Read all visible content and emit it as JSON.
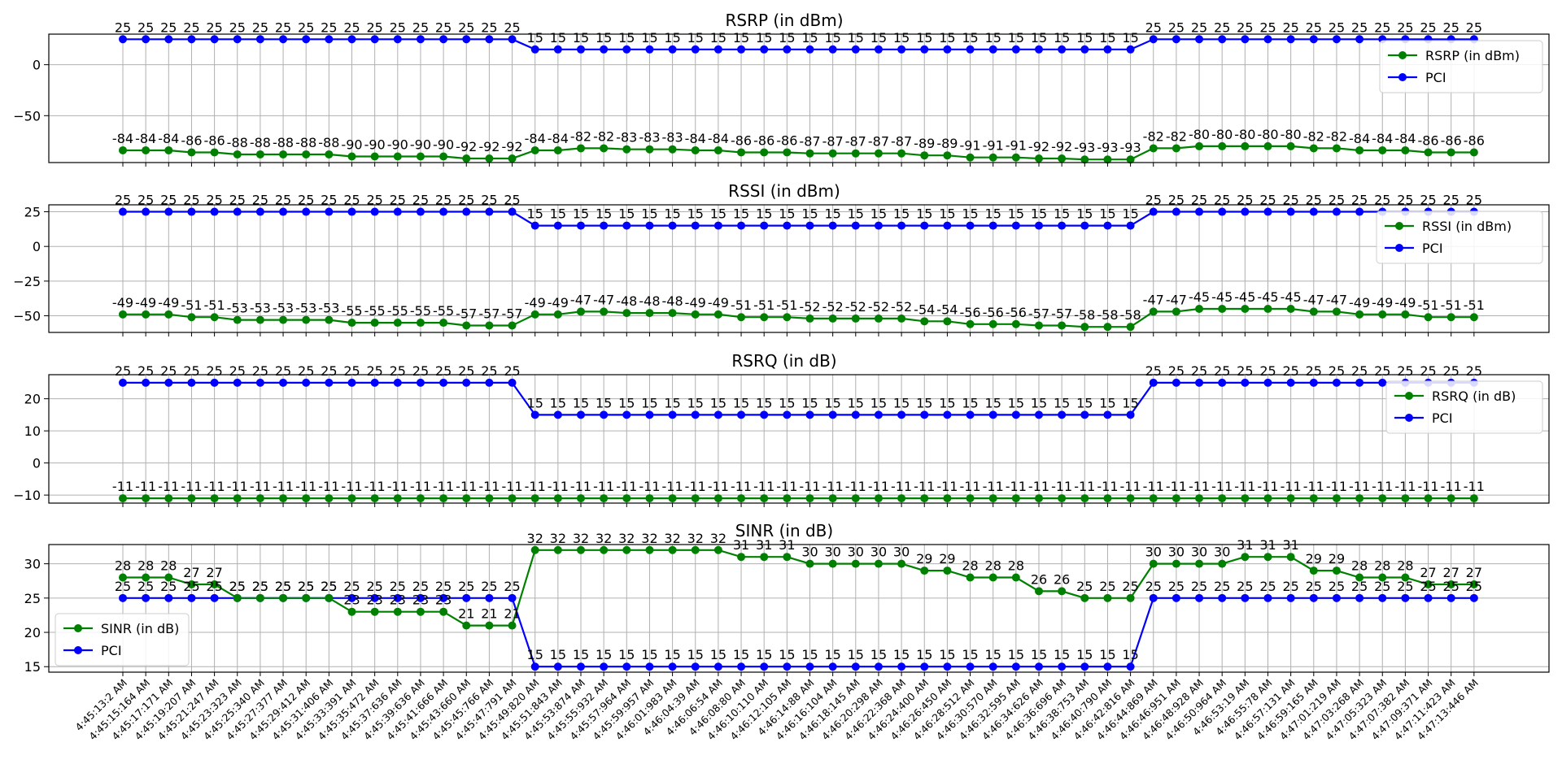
{
  "colors": {
    "metric": "#008000",
    "pci": "#0000ff",
    "grid": "#b0b0b0"
  },
  "x_labels": [
    "4:45:13:2 AM",
    "4:45:15:164 AM",
    "4:45:17:171 AM",
    "4:45:19:207 AM",
    "4:45:21:247 AM",
    "4:45:23:323 AM",
    "4:45:25:340 AM",
    "4:45:27:377 AM",
    "4:45:29:412 AM",
    "4:45:31:406 AM",
    "4:45:33:391 AM",
    "4:45:35:472 AM",
    "4:45:37:636 AM",
    "4:45:39:636 AM",
    "4:45:41:666 AM",
    "4:45:43:660 AM",
    "4:45:45:766 AM",
    "4:45:47:791 AM",
    "4:45:49:820 AM",
    "4:45:51:843 AM",
    "4:45:53:874 AM",
    "4:45:55:932 AM",
    "4:45:57:964 AM",
    "4:45:59:957 AM",
    "4:46:01:983 AM",
    "4:46:04:39 AM",
    "4:46:06:54 AM",
    "4:46:08:80 AM",
    "4:46:10:110 AM",
    "4:46:12:105 AM",
    "4:46:14:88 AM",
    "4:46:16:104 AM",
    "4:46:18:145 AM",
    "4:46:20:298 AM",
    "4:46:22:368 AM",
    "4:46:24:400 AM",
    "4:46:26:450 AM",
    "4:46:28:512 AM",
    "4:46:30:570 AM",
    "4:46:32:595 AM",
    "4:46:34:626 AM",
    "4:46:36:696 AM",
    "4:46:38:753 AM",
    "4:46:40:790 AM",
    "4:46:42:816 AM",
    "4:46:44:869 AM",
    "4:46:46:951 AM",
    "4:46:48:928 AM",
    "4:46:50:964 AM",
    "4:46:53:19 AM",
    "4:46:55:78 AM",
    "4:46:57:131 AM",
    "4:46:59:165 AM",
    "4:47:01:219 AM",
    "4:47:03:268 AM",
    "4:47:05:323 AM",
    "4:47:07:382 AM",
    "4:47:09:371 AM",
    "4:47:11:423 AM",
    "4:47:13:446 AM"
  ],
  "chart_data": [
    {
      "type": "line",
      "title": "RSRP (in dBm)",
      "ylim": [
        -96,
        30
      ],
      "yticks": [
        0,
        -50
      ],
      "legend_position": "upper right",
      "grid": true,
      "series": [
        {
          "name": "RSRP (in dBm)",
          "values": [
            -84,
            -84,
            -84,
            -86,
            -86,
            -88,
            -88,
            -88,
            -88,
            -88,
            -90,
            -90,
            -90,
            -90,
            -90,
            -92,
            -92,
            -92,
            -84,
            -84,
            -82,
            -82,
            -83,
            -83,
            -83,
            -84,
            -84,
            -86,
            -86,
            -86,
            -87,
            -87,
            -87,
            -87,
            -87,
            -89,
            -89,
            -91,
            -91,
            -91,
            -92,
            -92,
            -93,
            -93,
            -93,
            -82,
            -82,
            -80,
            -80,
            -80,
            -80,
            -80,
            -82,
            -82,
            -84,
            -84,
            -84,
            -86,
            -86,
            -86
          ]
        },
        {
          "name": "PCI",
          "values": [
            25,
            25,
            25,
            25,
            25,
            25,
            25,
            25,
            25,
            25,
            25,
            25,
            25,
            25,
            25,
            25,
            25,
            25,
            15,
            15,
            15,
            15,
            15,
            15,
            15,
            15,
            15,
            15,
            15,
            15,
            15,
            15,
            15,
            15,
            15,
            15,
            15,
            15,
            15,
            15,
            15,
            15,
            15,
            15,
            15,
            25,
            25,
            25,
            25,
            25,
            25,
            25,
            25,
            25,
            25,
            25,
            25,
            25,
            25,
            25
          ]
        }
      ]
    },
    {
      "type": "line",
      "title": "RSSI (in dBm)",
      "ylim": [
        -62,
        30
      ],
      "yticks": [
        25,
        0,
        -25,
        -50
      ],
      "legend_position": "upper right",
      "grid": true,
      "series": [
        {
          "name": "RSSI (in dBm)",
          "values": [
            -49,
            -49,
            -49,
            -51,
            -51,
            -53,
            -53,
            -53,
            -53,
            -53,
            -55,
            -55,
            -55,
            -55,
            -55,
            -57,
            -57,
            -57,
            -49,
            -49,
            -47,
            -47,
            -48,
            -48,
            -48,
            -49,
            -49,
            -51,
            -51,
            -51,
            -52,
            -52,
            -52,
            -52,
            -52,
            -54,
            -54,
            -56,
            -56,
            -56,
            -57,
            -57,
            -58,
            -58,
            -58,
            -47,
            -47,
            -45,
            -45,
            -45,
            -45,
            -45,
            -47,
            -47,
            -49,
            -49,
            -49,
            -51,
            -51,
            -51
          ]
        },
        {
          "name": "PCI",
          "values": [
            25,
            25,
            25,
            25,
            25,
            25,
            25,
            25,
            25,
            25,
            25,
            25,
            25,
            25,
            25,
            25,
            25,
            25,
            15,
            15,
            15,
            15,
            15,
            15,
            15,
            15,
            15,
            15,
            15,
            15,
            15,
            15,
            15,
            15,
            15,
            15,
            15,
            15,
            15,
            15,
            15,
            15,
            15,
            15,
            15,
            25,
            25,
            25,
            25,
            25,
            25,
            25,
            25,
            25,
            25,
            25,
            25,
            25,
            25,
            25
          ]
        }
      ]
    },
    {
      "type": "line",
      "title": "RSRQ (in dB)",
      "ylim": [
        -12.5,
        27.5
      ],
      "yticks": [
        20,
        10,
        0,
        -10
      ],
      "legend_position": "upper right",
      "grid": true,
      "series": [
        {
          "name": "RSRQ (in dB)",
          "values": [
            -11,
            -11,
            -11,
            -11,
            -11,
            -11,
            -11,
            -11,
            -11,
            -11,
            -11,
            -11,
            -11,
            -11,
            -11,
            -11,
            -11,
            -11,
            -11,
            -11,
            -11,
            -11,
            -11,
            -11,
            -11,
            -11,
            -11,
            -11,
            -11,
            -11,
            -11,
            -11,
            -11,
            -11,
            -11,
            -11,
            -11,
            -11,
            -11,
            -11,
            -11,
            -11,
            -11,
            -11,
            -11,
            -11,
            -11,
            -11,
            -11,
            -11,
            -11,
            -11,
            -11,
            -11,
            -11,
            -11,
            -11,
            -11,
            -11,
            -11
          ]
        },
        {
          "name": "PCI",
          "values": [
            25,
            25,
            25,
            25,
            25,
            25,
            25,
            25,
            25,
            25,
            25,
            25,
            25,
            25,
            25,
            25,
            25,
            25,
            15,
            15,
            15,
            15,
            15,
            15,
            15,
            15,
            15,
            15,
            15,
            15,
            15,
            15,
            15,
            15,
            15,
            15,
            15,
            15,
            15,
            15,
            15,
            15,
            15,
            15,
            15,
            25,
            25,
            25,
            25,
            25,
            25,
            25,
            25,
            25,
            25,
            25,
            25,
            25,
            25,
            25
          ]
        }
      ]
    },
    {
      "type": "line",
      "title": "SINR (in dB)",
      "ylim": [
        14.2,
        32.8
      ],
      "yticks": [
        30,
        25,
        20,
        15
      ],
      "legend_position": "lower left",
      "grid": true,
      "series": [
        {
          "name": "SINR (in dB)",
          "values": [
            28,
            28,
            28,
            27,
            27,
            25,
            25,
            25,
            25,
            25,
            23,
            23,
            23,
            23,
            23,
            21,
            21,
            21,
            32,
            32,
            32,
            32,
            32,
            32,
            32,
            32,
            32,
            31,
            31,
            31,
            30,
            30,
            30,
            30,
            30,
            29,
            29,
            28,
            28,
            28,
            26,
            26,
            25,
            25,
            25,
            30,
            30,
            30,
            30,
            31,
            31,
            31,
            29,
            29,
            28,
            28,
            28,
            27,
            27,
            27
          ]
        },
        {
          "name": "PCI",
          "values": [
            25,
            25,
            25,
            25,
            25,
            25,
            25,
            25,
            25,
            25,
            25,
            25,
            25,
            25,
            25,
            25,
            25,
            25,
            15,
            15,
            15,
            15,
            15,
            15,
            15,
            15,
            15,
            15,
            15,
            15,
            15,
            15,
            15,
            15,
            15,
            15,
            15,
            15,
            15,
            15,
            15,
            15,
            15,
            15,
            15,
            25,
            25,
            25,
            25,
            25,
            25,
            25,
            25,
            25,
            25,
            25,
            25,
            25,
            25,
            25
          ]
        }
      ]
    }
  ]
}
